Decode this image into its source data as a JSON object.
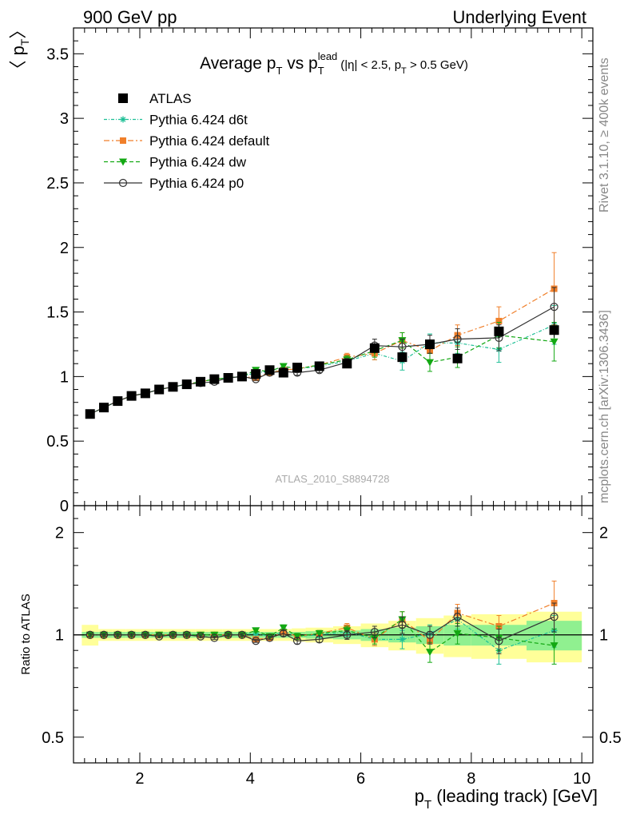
{
  "header": {
    "left": "900 GeV pp",
    "right": "Underlying Event"
  },
  "side_texts": {
    "rivet": "Rivet 3.1.10, ≥ 400k events",
    "mcplots": "mcplots.cern.ch [arXiv:1306.3436]"
  },
  "watermark": "ATLAS_2010_S8894728",
  "main_title": {
    "prefix": "Average p",
    "sub1": "T",
    "mid": " vs p",
    "sub2": "T",
    "sup2": "lead",
    "tail_a": "(|η| < 2.5, p",
    "tail_sub": "T",
    "tail_b": " > 0.5 GeV)"
  },
  "ylabel": {
    "text": "〈 p",
    "sub": "T",
    "close": "〉"
  },
  "ratio_ylabel": "Ratio to ATLAS",
  "xlabel": {
    "pre": "p",
    "sub": "T",
    "post": " (leading track) [GeV]"
  },
  "colors": {
    "atlas": "#000000",
    "d6t": "#1ebf96",
    "default": "#f07f2a",
    "dw": "#13a813",
    "p0": "#333333",
    "band_inner": "#90f090",
    "band_outer": "#ffff99"
  },
  "legend": [
    {
      "label": "ATLAS",
      "key": "atlas",
      "marker": "square",
      "dash": "none"
    },
    {
      "label": "Pythia 6.424 d6t",
      "key": "d6t",
      "marker": "star",
      "dash": "dashdot-fine"
    },
    {
      "label": "Pythia 6.424 default",
      "key": "default",
      "marker": "square-small",
      "dash": "dashdot"
    },
    {
      "label": "Pythia 6.424 dw",
      "key": "dw",
      "marker": "triangle-down",
      "dash": "dashed"
    },
    {
      "label": "Pythia 6.424 p0",
      "key": "p0",
      "marker": "circle-open",
      "dash": "solid"
    }
  ],
  "chart_data": [
    {
      "type": "scatter",
      "panel": "main",
      "xlabel": "p_T (leading track) [GeV]",
      "ylabel": "⟨ p_T ⟩",
      "xlim": [
        0.8,
        10.2
      ],
      "ylim": [
        0,
        3.7
      ],
      "yticks": [
        0,
        0.5,
        1,
        1.5,
        2,
        2.5,
        3,
        3.5
      ],
      "ytick_labels": [
        "0",
        "0.5",
        "1",
        "1.5",
        "2",
        "2.5",
        "3",
        "3.5"
      ],
      "x": [
        1.1,
        1.35,
        1.6,
        1.85,
        2.1,
        2.35,
        2.6,
        2.85,
        3.1,
        3.35,
        3.6,
        3.85,
        4.1,
        4.35,
        4.6,
        4.85,
        5.25,
        5.75,
        6.25,
        6.75,
        7.25,
        7.75,
        8.5,
        9.5
      ],
      "series": [
        {
          "name": "ATLAS",
          "key": "atlas",
          "values": [
            0.71,
            0.76,
            0.81,
            0.85,
            0.87,
            0.9,
            0.92,
            0.94,
            0.96,
            0.98,
            0.99,
            1.0,
            1.02,
            1.05,
            1.03,
            1.07,
            1.08,
            1.1,
            1.22,
            1.15,
            1.25,
            1.14,
            1.35,
            1.36
          ],
          "errors": [
            0.01,
            0.01,
            0.01,
            0.01,
            0.01,
            0.01,
            0.01,
            0.01,
            0.01,
            0.01,
            0.01,
            0.01,
            0.01,
            0.01,
            0.01,
            0.02,
            0.02,
            0.02,
            0.03,
            0.03,
            0.04,
            0.04,
            0.05,
            0.06
          ]
        },
        {
          "name": "Pythia 6.424 d6t",
          "key": "d6t",
          "values": [
            0.71,
            0.76,
            0.81,
            0.85,
            0.87,
            0.9,
            0.92,
            0.94,
            0.96,
            0.98,
            0.99,
            1.0,
            1.03,
            1.04,
            1.05,
            1.06,
            1.08,
            1.12,
            1.18,
            1.12,
            1.26,
            1.26,
            1.21,
            1.4
          ],
          "errors": [
            0.01,
            0.01,
            0.01,
            0.01,
            0.01,
            0.01,
            0.01,
            0.01,
            0.01,
            0.01,
            0.01,
            0.01,
            0.01,
            0.01,
            0.02,
            0.02,
            0.02,
            0.03,
            0.05,
            0.07,
            0.07,
            0.08,
            0.1,
            0.15
          ]
        },
        {
          "name": "Pythia 6.424 default",
          "key": "default",
          "values": [
            0.71,
            0.76,
            0.81,
            0.85,
            0.87,
            0.9,
            0.92,
            0.94,
            0.96,
            0.98,
            0.99,
            1.0,
            0.99,
            1.03,
            1.05,
            1.06,
            1.09,
            1.15,
            1.18,
            1.28,
            1.2,
            1.32,
            1.43,
            1.68
          ],
          "errors": [
            0.01,
            0.01,
            0.01,
            0.01,
            0.01,
            0.01,
            0.01,
            0.01,
            0.01,
            0.01,
            0.01,
            0.01,
            0.01,
            0.01,
            0.02,
            0.02,
            0.02,
            0.03,
            0.05,
            0.06,
            0.07,
            0.08,
            0.11,
            0.28
          ]
        },
        {
          "name": "Pythia 6.424 dw",
          "key": "dw",
          "values": [
            0.71,
            0.76,
            0.81,
            0.85,
            0.87,
            0.9,
            0.92,
            0.94,
            0.96,
            0.98,
            0.99,
            1.0,
            1.05,
            1.04,
            1.08,
            1.06,
            1.09,
            1.13,
            1.2,
            1.28,
            1.11,
            1.15,
            1.32,
            1.27
          ],
          "errors": [
            0.01,
            0.01,
            0.01,
            0.01,
            0.01,
            0.01,
            0.01,
            0.01,
            0.01,
            0.01,
            0.01,
            0.01,
            0.01,
            0.01,
            0.02,
            0.02,
            0.02,
            0.03,
            0.05,
            0.06,
            0.07,
            0.08,
            0.1,
            0.15
          ]
        },
        {
          "name": "Pythia 6.424 p0",
          "key": "p0",
          "values": [
            0.71,
            0.76,
            0.81,
            0.85,
            0.87,
            0.9,
            0.92,
            0.94,
            0.95,
            0.96,
            0.99,
            1.0,
            0.98,
            1.03,
            1.04,
            1.03,
            1.05,
            1.11,
            1.24,
            1.23,
            1.25,
            1.29,
            1.3,
            1.54
          ],
          "errors": [
            0.01,
            0.01,
            0.01,
            0.01,
            0.01,
            0.01,
            0.01,
            0.01,
            0.01,
            0.01,
            0.01,
            0.01,
            0.01,
            0.01,
            0.02,
            0.02,
            0.02,
            0.03,
            0.05,
            0.06,
            0.07,
            0.08,
            0.1,
            0.15
          ]
        }
      ]
    },
    {
      "type": "scatter",
      "panel": "ratio",
      "ylabel": "Ratio to ATLAS",
      "xlabel": "p_T (leading track) [GeV]",
      "xlim": [
        0.8,
        10.2
      ],
      "ylim": [
        0.42,
        2.4
      ],
      "y_log": true,
      "yticks": [
        0.5,
        1,
        2
      ],
      "ytick_labels": [
        "0.5",
        "1",
        "2"
      ],
      "xticks": [
        2,
        4,
        6,
        8,
        10
      ],
      "xtick_labels": [
        "2",
        "4",
        "6",
        "8",
        "10"
      ],
      "x": [
        1.1,
        1.35,
        1.6,
        1.85,
        2.1,
        2.35,
        2.6,
        2.85,
        3.1,
        3.35,
        3.6,
        3.85,
        4.1,
        4.35,
        4.6,
        4.85,
        5.25,
        5.75,
        6.25,
        6.75,
        7.25,
        7.75,
        8.5,
        9.5
      ],
      "bin_edges": [
        0.95,
        1.25,
        1.5,
        1.75,
        2.0,
        2.25,
        2.5,
        2.75,
        3.0,
        3.25,
        3.5,
        3.75,
        4.0,
        4.25,
        4.5,
        4.75,
        5.0,
        5.5,
        6.0,
        6.5,
        7.0,
        7.5,
        8.0,
        9.0,
        10.0
      ],
      "band_inner": [
        0.02,
        0.02,
        0.02,
        0.02,
        0.02,
        0.02,
        0.02,
        0.02,
        0.02,
        0.02,
        0.02,
        0.02,
        0.02,
        0.02,
        0.02,
        0.02,
        0.025,
        0.03,
        0.04,
        0.05,
        0.06,
        0.07,
        0.07,
        0.1
      ],
      "band_outer": [
        0.07,
        0.04,
        0.04,
        0.04,
        0.04,
        0.04,
        0.04,
        0.04,
        0.04,
        0.04,
        0.04,
        0.04,
        0.04,
        0.04,
        0.04,
        0.045,
        0.05,
        0.06,
        0.08,
        0.1,
        0.12,
        0.14,
        0.15,
        0.17
      ],
      "series": [
        {
          "name": "Pythia 6.424 d6t",
          "key": "d6t",
          "values": [
            1.0,
            1.0,
            1.0,
            1.0,
            1.0,
            1.0,
            1.0,
            1.0,
            1.0,
            1.0,
            1.0,
            1.0,
            1.01,
            0.99,
            1.02,
            0.99,
            1.0,
            1.02,
            0.97,
            0.97,
            1.01,
            1.11,
            0.9,
            1.03
          ],
          "errors": [
            0.01,
            0.01,
            0.01,
            0.01,
            0.01,
            0.01,
            0.01,
            0.01,
            0.01,
            0.01,
            0.01,
            0.01,
            0.01,
            0.01,
            0.02,
            0.02,
            0.02,
            0.03,
            0.04,
            0.06,
            0.06,
            0.07,
            0.08,
            0.11
          ]
        },
        {
          "name": "Pythia 6.424 default",
          "key": "default",
          "values": [
            1.0,
            1.0,
            1.0,
            1.0,
            1.0,
            1.0,
            1.0,
            1.0,
            1.0,
            1.0,
            1.0,
            1.0,
            0.97,
            0.98,
            1.02,
            0.99,
            1.01,
            1.05,
            0.97,
            1.11,
            0.96,
            1.16,
            1.06,
            1.24
          ],
          "errors": [
            0.01,
            0.01,
            0.01,
            0.01,
            0.01,
            0.01,
            0.01,
            0.01,
            0.01,
            0.01,
            0.01,
            0.01,
            0.01,
            0.01,
            0.02,
            0.02,
            0.02,
            0.03,
            0.04,
            0.06,
            0.06,
            0.07,
            0.08,
            0.2
          ]
        },
        {
          "name": "Pythia 6.424 dw",
          "key": "dw",
          "values": [
            1.0,
            1.0,
            1.0,
            1.0,
            1.0,
            1.0,
            1.0,
            1.0,
            1.0,
            1.0,
            1.0,
            1.0,
            1.03,
            0.99,
            1.05,
            0.99,
            1.01,
            1.03,
            0.98,
            1.11,
            0.89,
            1.01,
            0.98,
            0.93
          ],
          "errors": [
            0.01,
            0.01,
            0.01,
            0.01,
            0.01,
            0.01,
            0.01,
            0.01,
            0.01,
            0.01,
            0.01,
            0.01,
            0.01,
            0.01,
            0.02,
            0.02,
            0.02,
            0.03,
            0.04,
            0.06,
            0.06,
            0.07,
            0.08,
            0.11
          ]
        },
        {
          "name": "Pythia 6.424 p0",
          "key": "p0",
          "values": [
            1.0,
            1.0,
            1.0,
            1.0,
            1.0,
            0.99,
            1.0,
            1.0,
            0.99,
            0.98,
            1.0,
            1.0,
            0.96,
            0.98,
            1.01,
            0.96,
            0.97,
            1.0,
            1.02,
            1.07,
            1.0,
            1.13,
            0.96,
            1.13
          ],
          "errors": [
            0.01,
            0.01,
            0.01,
            0.01,
            0.01,
            0.01,
            0.01,
            0.01,
            0.01,
            0.01,
            0.01,
            0.01,
            0.01,
            0.01,
            0.02,
            0.02,
            0.02,
            0.03,
            0.04,
            0.06,
            0.06,
            0.07,
            0.08,
            0.11
          ]
        }
      ]
    }
  ]
}
